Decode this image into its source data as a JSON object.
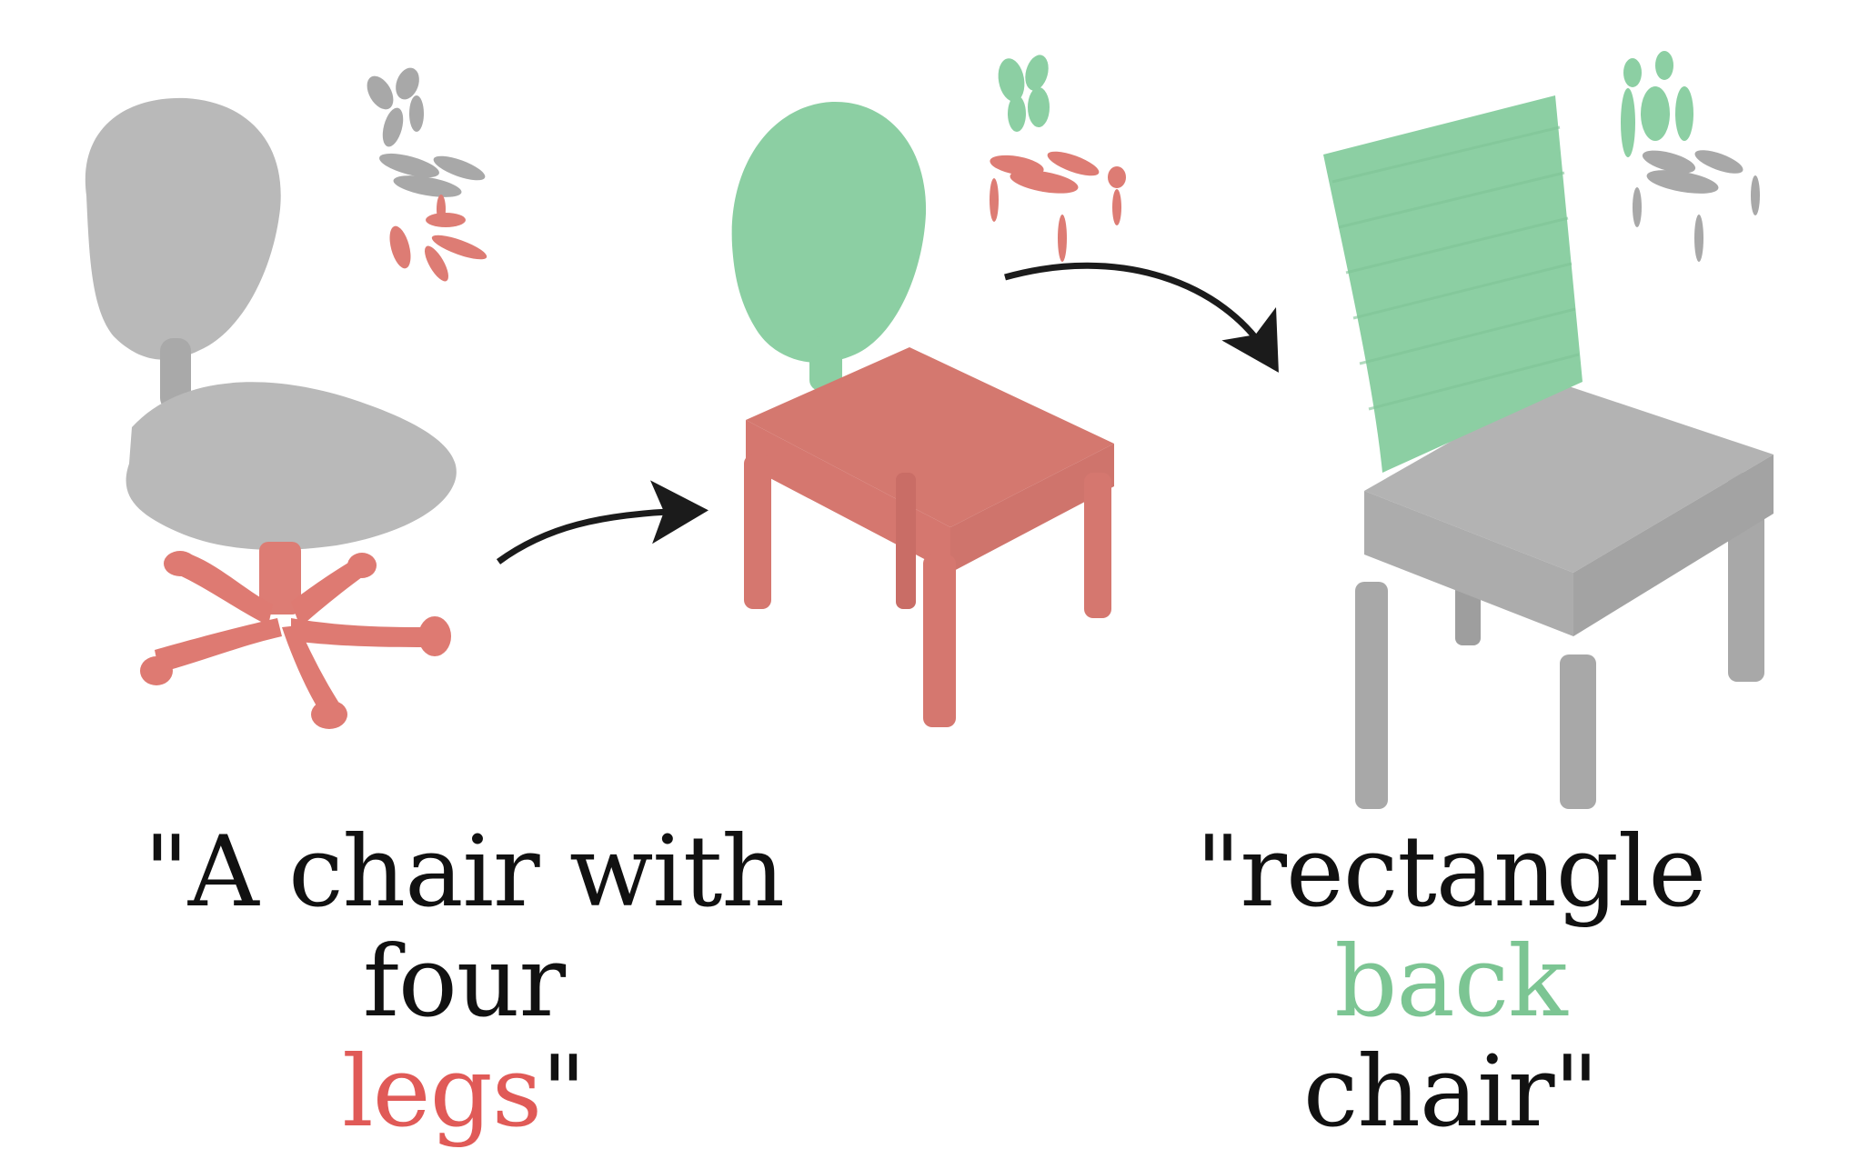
{
  "colors": {
    "neutral": "#b9b9b9",
    "legs": "#de7a72",
    "back": "#8ccfa3",
    "arrow": "#1b1b1b",
    "text": "#111111",
    "text_red": "#e05a57",
    "text_green": "#7cc593"
  },
  "captions": {
    "left": {
      "line1": "\"A chair with four",
      "highlight": "legs",
      "line2_end": "\""
    },
    "right": {
      "line1_start": "\"rectangle ",
      "highlight": "back",
      "line2": "chair\""
    }
  },
  "panels": [
    {
      "name": "office-chair",
      "highlighted_part": "legs"
    },
    {
      "name": "four-leg-chair",
      "highlighted_part": "back"
    },
    {
      "name": "rectangle-back-chair",
      "highlighted_part": "back"
    }
  ],
  "icons": [
    "gaussian-blob-icon",
    "curved-arrow-icon"
  ]
}
